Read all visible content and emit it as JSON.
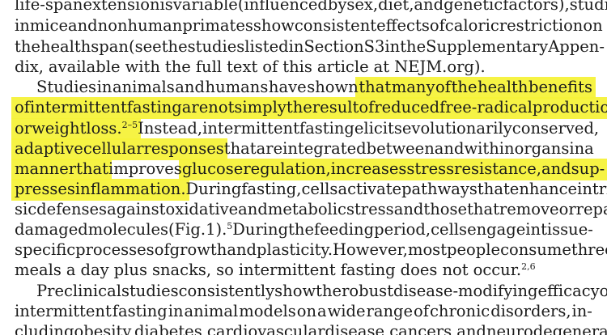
{
  "article": {
    "paragraphs": [
      {
        "id": "p1",
        "lines": [
          "life-span extension is variable (influenced by sex, diet, and genetic factors), studies",
          "in mice and nonhuman primates show consistent effects of caloric restriction on",
          "the health span (see the studies listed in Section S3 in the Supplementary Appen-",
          "dix, available with the full text of this article at NEJM.org)."
        ]
      },
      {
        "id": "p2",
        "lines": [
          "Studies in animals and humans have shown that many of the health benefits",
          "of intermittent fasting are not simply the result of reduced free-radical production",
          "or weight loss.{2-5} Instead, intermittent fasting elicits evolutionarily conserved,",
          "adaptive cellular responses that are integrated between and within organs in a",
          "manner that improves glucose regulation, increases stress resistance, and sup-",
          "presses inflammation. During fasting, cells activate pathways that enhance intrin-",
          "sic defenses against oxidative and metabolic stress and those that remove or repair",
          "damaged molecules (Fig. 1).{5} During the feeding period, cells engage in tissue-",
          "specific processes of growth and plasticity. However, most people consume three",
          "meals a day plus snacks, so intermittent fasting does not occur.{2,6}"
        ]
      },
      {
        "id": "p3",
        "lines": [
          "Preclinical studies consistently show the robust disease-modifying efficacy of",
          "intermittent fasting in animal models on a wide range of chronic disorders, in-",
          "cluding obesity, diabetes, cardiovascular disease, cancers, and neurodegenerative"
        ]
      }
    ],
    "highlight_color": "#f6f23a",
    "text_color": "#1b1b1b"
  }
}
